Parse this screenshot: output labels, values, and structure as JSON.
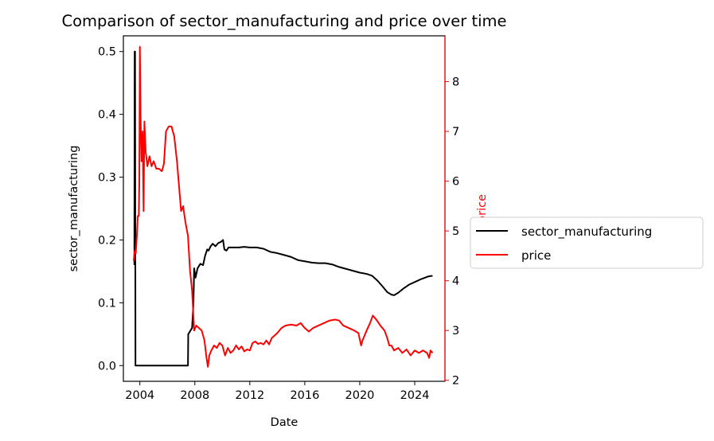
{
  "chart_data": {
    "type": "line",
    "title": "Comparison of sector_manufacturing and price over time",
    "xlabel": "Date",
    "ylabel_left": "sector_manufacturing",
    "ylabel_right": "price",
    "x_ticks": [
      "2004",
      "2008",
      "2012",
      "2016",
      "2020",
      "2024"
    ],
    "y_left_ticks": [
      "0.0",
      "0.1",
      "0.2",
      "0.3",
      "0.4",
      "0.5"
    ],
    "y_right_ticks": [
      "2",
      "3",
      "4",
      "5",
      "6",
      "7",
      "8"
    ],
    "xlim": [
      2002.8,
      2026.2
    ],
    "ylim_left": [
      -0.025,
      0.525
    ],
    "ylim_right": [
      1.98,
      8.92
    ],
    "grid": false,
    "legend_position": "outside right",
    "series": [
      {
        "name": "sector_manufacturing",
        "axis": "left",
        "color": "#000000",
        "points": [
          [
            2003.6,
            0.16
          ],
          [
            2003.62,
            0.5
          ],
          [
            2003.65,
            0.5
          ],
          [
            2003.68,
            0.0
          ],
          [
            2007.5,
            0.0
          ],
          [
            2007.52,
            0.05
          ],
          [
            2007.8,
            0.06
          ],
          [
            2007.9,
            0.1
          ],
          [
            2007.95,
            0.155
          ],
          [
            2008.05,
            0.14
          ],
          [
            2008.2,
            0.155
          ],
          [
            2008.4,
            0.162
          ],
          [
            2008.6,
            0.16
          ],
          [
            2008.75,
            0.175
          ],
          [
            2008.9,
            0.185
          ],
          [
            2009.0,
            0.183
          ],
          [
            2009.15,
            0.19
          ],
          [
            2009.3,
            0.194
          ],
          [
            2009.5,
            0.19
          ],
          [
            2009.7,
            0.195
          ],
          [
            2009.9,
            0.197
          ],
          [
            2010.05,
            0.2
          ],
          [
            2010.15,
            0.185
          ],
          [
            2010.3,
            0.183
          ],
          [
            2010.45,
            0.188
          ],
          [
            2010.8,
            0.188
          ],
          [
            2011.2,
            0.188
          ],
          [
            2011.6,
            0.189
          ],
          [
            2012.0,
            0.188
          ],
          [
            2012.5,
            0.188
          ],
          [
            2013.0,
            0.186
          ],
          [
            2013.5,
            0.181
          ],
          [
            2014.0,
            0.179
          ],
          [
            2014.5,
            0.176
          ],
          [
            2015.0,
            0.173
          ],
          [
            2015.5,
            0.168
          ],
          [
            2016.0,
            0.166
          ],
          [
            2016.5,
            0.164
          ],
          [
            2017.0,
            0.163
          ],
          [
            2017.5,
            0.163
          ],
          [
            2018.0,
            0.161
          ],
          [
            2018.5,
            0.157
          ],
          [
            2019.0,
            0.154
          ],
          [
            2019.5,
            0.151
          ],
          [
            2020.0,
            0.148
          ],
          [
            2020.5,
            0.146
          ],
          [
            2020.9,
            0.143
          ],
          [
            2021.3,
            0.135
          ],
          [
            2021.7,
            0.125
          ],
          [
            2022.0,
            0.117
          ],
          [
            2022.3,
            0.113
          ],
          [
            2022.5,
            0.112
          ],
          [
            2022.8,
            0.116
          ],
          [
            2023.2,
            0.123
          ],
          [
            2023.6,
            0.129
          ],
          [
            2024.0,
            0.133
          ],
          [
            2024.5,
            0.138
          ],
          [
            2025.0,
            0.142
          ],
          [
            2025.3,
            0.143
          ]
        ]
      },
      {
        "name": "price",
        "axis": "right",
        "color": "#ff0000",
        "points": [
          [
            2003.55,
            4.4
          ],
          [
            2003.62,
            4.6
          ],
          [
            2003.7,
            4.55
          ],
          [
            2003.78,
            4.9
          ],
          [
            2003.85,
            5.3
          ],
          [
            2003.92,
            5.3
          ],
          [
            2003.96,
            6.0
          ],
          [
            2004.0,
            8.7
          ],
          [
            2004.05,
            7.3
          ],
          [
            2004.12,
            6.4
          ],
          [
            2004.2,
            7.0
          ],
          [
            2004.27,
            5.4
          ],
          [
            2004.33,
            7.2
          ],
          [
            2004.42,
            6.6
          ],
          [
            2004.55,
            6.3
          ],
          [
            2004.7,
            6.5
          ],
          [
            2004.85,
            6.3
          ],
          [
            2005.0,
            6.4
          ],
          [
            2005.2,
            6.25
          ],
          [
            2005.4,
            6.25
          ],
          [
            2005.6,
            6.2
          ],
          [
            2005.75,
            6.35
          ],
          [
            2005.9,
            7.0
          ],
          [
            2006.1,
            7.1
          ],
          [
            2006.3,
            7.1
          ],
          [
            2006.5,
            6.9
          ],
          [
            2006.7,
            6.4
          ],
          [
            2006.85,
            5.9
          ],
          [
            2007.0,
            5.4
          ],
          [
            2007.15,
            5.5
          ],
          [
            2007.3,
            5.2
          ],
          [
            2007.5,
            4.9
          ],
          [
            2007.65,
            4.2
          ],
          [
            2007.8,
            3.8
          ],
          [
            2007.95,
            3.0
          ],
          [
            2008.1,
            3.1
          ],
          [
            2008.3,
            3.05
          ],
          [
            2008.5,
            3.0
          ],
          [
            2008.7,
            2.8
          ],
          [
            2008.85,
            2.45
          ],
          [
            2008.95,
            2.27
          ],
          [
            2009.05,
            2.5
          ],
          [
            2009.2,
            2.6
          ],
          [
            2009.4,
            2.7
          ],
          [
            2009.6,
            2.65
          ],
          [
            2009.8,
            2.75
          ],
          [
            2010.0,
            2.7
          ],
          [
            2010.2,
            2.5
          ],
          [
            2010.4,
            2.65
          ],
          [
            2010.6,
            2.55
          ],
          [
            2010.8,
            2.6
          ],
          [
            2011.0,
            2.7
          ],
          [
            2011.2,
            2.62
          ],
          [
            2011.4,
            2.68
          ],
          [
            2011.6,
            2.58
          ],
          [
            2011.8,
            2.62
          ],
          [
            2012.0,
            2.6
          ],
          [
            2012.2,
            2.75
          ],
          [
            2012.4,
            2.78
          ],
          [
            2012.6,
            2.73
          ],
          [
            2012.8,
            2.75
          ],
          [
            2013.0,
            2.72
          ],
          [
            2013.2,
            2.8
          ],
          [
            2013.4,
            2.72
          ],
          [
            2013.6,
            2.85
          ],
          [
            2013.8,
            2.9
          ],
          [
            2014.0,
            2.95
          ],
          [
            2014.3,
            3.05
          ],
          [
            2014.6,
            3.1
          ],
          [
            2015.0,
            3.12
          ],
          [
            2015.4,
            3.1
          ],
          [
            2015.7,
            3.15
          ],
          [
            2016.0,
            3.05
          ],
          [
            2016.3,
            2.98
          ],
          [
            2016.6,
            3.05
          ],
          [
            2017.0,
            3.1
          ],
          [
            2017.4,
            3.15
          ],
          [
            2017.8,
            3.2
          ],
          [
            2018.2,
            3.22
          ],
          [
            2018.5,
            3.2
          ],
          [
            2018.8,
            3.1
          ],
          [
            2019.2,
            3.05
          ],
          [
            2019.6,
            3.0
          ],
          [
            2019.9,
            2.95
          ],
          [
            2020.1,
            2.7
          ],
          [
            2020.2,
            2.8
          ],
          [
            2020.35,
            2.9
          ],
          [
            2020.5,
            3.0
          ],
          [
            2020.75,
            3.15
          ],
          [
            2020.95,
            3.3
          ],
          [
            2021.2,
            3.22
          ],
          [
            2021.5,
            3.1
          ],
          [
            2021.8,
            3.0
          ],
          [
            2022.0,
            2.85
          ],
          [
            2022.15,
            2.7
          ],
          [
            2022.3,
            2.7
          ],
          [
            2022.5,
            2.6
          ],
          [
            2022.8,
            2.65
          ],
          [
            2023.1,
            2.55
          ],
          [
            2023.4,
            2.62
          ],
          [
            2023.7,
            2.5
          ],
          [
            2024.0,
            2.6
          ],
          [
            2024.3,
            2.55
          ],
          [
            2024.6,
            2.6
          ],
          [
            2024.9,
            2.55
          ],
          [
            2025.05,
            2.45
          ],
          [
            2025.15,
            2.6
          ],
          [
            2025.3,
            2.55
          ]
        ]
      }
    ]
  }
}
